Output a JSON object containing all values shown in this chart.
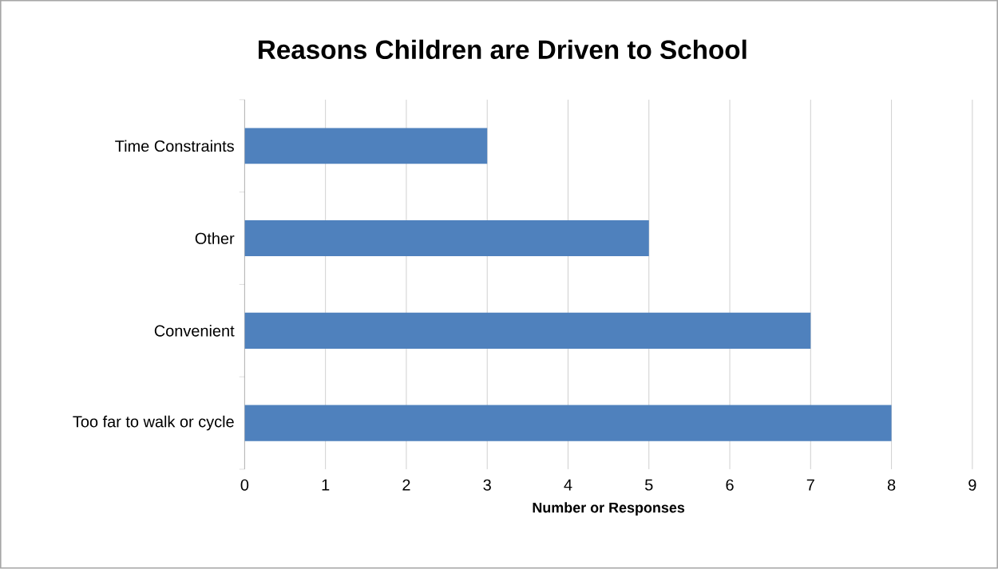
{
  "chart_data": {
    "type": "bar",
    "orientation": "horizontal",
    "title": "Reasons Children are Driven to School",
    "xlabel": "Number or Responses",
    "categories": [
      "Time Constraints",
      "Other",
      "Convenient",
      "Too far to walk or cycle"
    ],
    "values": [
      3,
      5,
      7,
      8
    ],
    "color": "#4f81bd",
    "xlim": [
      0,
      9
    ],
    "xticks": [
      0,
      1,
      2,
      3,
      4,
      5,
      6,
      7,
      8,
      9
    ],
    "grid": "x"
  }
}
